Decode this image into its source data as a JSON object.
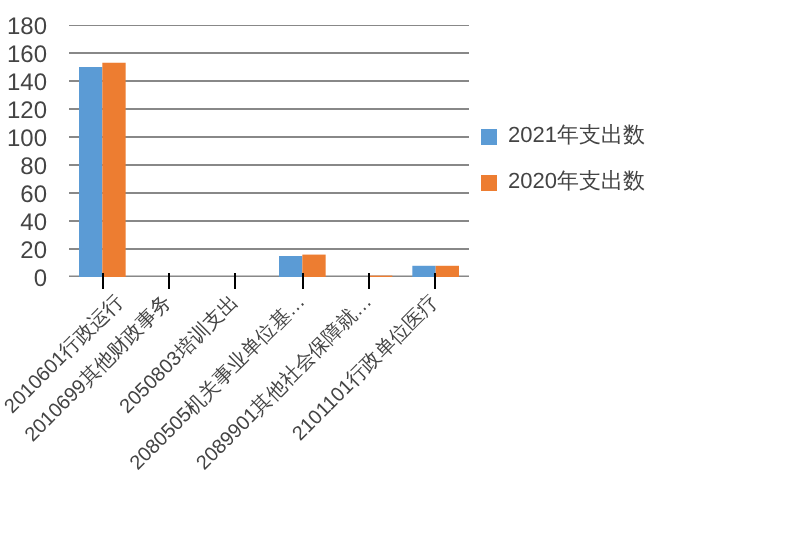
{
  "chart_data": {
    "type": "bar",
    "categories": [
      "2010601行政运行",
      "2010699其他财政事务",
      "2050803培训支出",
      "2080505机关事业单位基…",
      "2089901其他社会保障就…",
      "2101101行政单位医疗"
    ],
    "series": [
      {
        "name": "2021年支出数",
        "color": "#5b9bd5",
        "values": [
          150,
          0,
          0,
          15,
          0,
          8
        ]
      },
      {
        "name": "2020年支出数",
        "color": "#ed7d31",
        "values": [
          153,
          0,
          0,
          16,
          1,
          8
        ]
      }
    ],
    "ylim": [
      0,
      180
    ],
    "yticks": [
      0,
      20,
      40,
      60,
      80,
      100,
      120,
      140,
      160,
      180
    ],
    "grid": "y",
    "legend": "right"
  }
}
